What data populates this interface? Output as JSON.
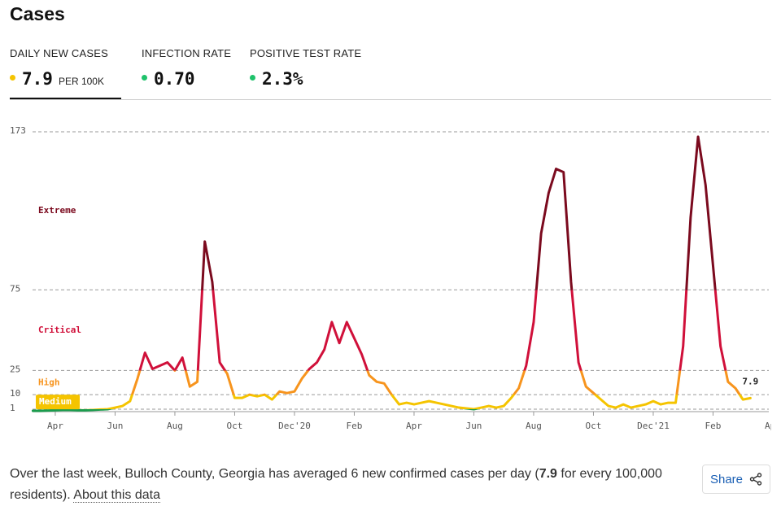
{
  "header": {
    "title": "Cases"
  },
  "tabs": [
    {
      "label": "DAILY NEW CASES",
      "value": "7.9",
      "unit": "PER 100K",
      "dot_color": "#f5c400"
    },
    {
      "label": "INFECTION RATE",
      "value": "0.70",
      "dot_color": "#1fc26b"
    },
    {
      "label": "POSITIVE TEST RATE",
      "value": "2.3%",
      "dot_color": "#1fc26b"
    }
  ],
  "chart_data": {
    "type": "line",
    "categories": [
      null,
      null,
      null,
      "Apr",
      null,
      null,
      null,
      null,
      null,
      null,
      null,
      "Jun",
      null,
      null,
      null,
      null,
      null,
      null,
      null,
      "Aug",
      null,
      null,
      null,
      null,
      null,
      null,
      null,
      "Oct",
      null,
      null,
      null,
      null,
      null,
      null,
      null,
      "Dec'20",
      null,
      null,
      null,
      null,
      null,
      null,
      null,
      "Feb",
      null,
      null,
      null,
      null,
      null,
      null,
      null,
      "Apr",
      null,
      null,
      null,
      null,
      null,
      null,
      null,
      "Jun",
      null,
      null,
      null,
      null,
      null,
      null,
      null,
      "Aug",
      null,
      null,
      null,
      null,
      null,
      null,
      null,
      "Oct",
      null,
      null,
      null,
      null,
      null,
      null,
      null,
      "Dec'21",
      null,
      null,
      null,
      null,
      null,
      null,
      null,
      "Feb",
      null,
      null,
      null,
      null,
      null,
      null,
      null,
      "Apr"
    ],
    "values": [
      0,
      0,
      0.2,
      0.3,
      0.5,
      0.5,
      0.3,
      0.3,
      0.5,
      0.8,
      1,
      2,
      3,
      6,
      20,
      36,
      26,
      28,
      30,
      25,
      33,
      15,
      18,
      105,
      80,
      30,
      23,
      8,
      8,
      10,
      9,
      10,
      7,
      12,
      11,
      12,
      20,
      26,
      30,
      38,
      55,
      42,
      55,
      45,
      35,
      22,
      18,
      17,
      10,
      4,
      5,
      4,
      5,
      6,
      5,
      4,
      3,
      2,
      1.5,
      1,
      2,
      3,
      2,
      3,
      8,
      14,
      28,
      55,
      110,
      135,
      150,
      148,
      80,
      30,
      15,
      11,
      7,
      3,
      2,
      4,
      2,
      3,
      4,
      6,
      4,
      5,
      5,
      40,
      120,
      170,
      140,
      90,
      40,
      18,
      14,
      7,
      7.9,
      null,
      null,
      null
    ],
    "ylim": [
      0,
      173
    ],
    "yticks": [
      1,
      10,
      25,
      75,
      173
    ],
    "grid": true,
    "low_color": "#1a9c4d",
    "zones": [
      {
        "label": "Medium",
        "min": 1,
        "max": 10,
        "color": "#f5c400"
      },
      {
        "label": "High",
        "min": 10,
        "max": 25,
        "color": "#f7941d"
      },
      {
        "label": "Critical",
        "min": 25,
        "max": 75,
        "color": "#d0103a"
      },
      {
        "label": "Extreme",
        "min": 75,
        "max": 173,
        "color": "#7b0a1e"
      }
    ]
  },
  "footer": {
    "text_before": "Over the last week, Bulloch County, Georgia has averaged 6 new confirmed cases per day (",
    "bold": "7.9",
    "text_after": " for every 100,000 residents). ",
    "link": "About this data"
  },
  "share": "Share"
}
